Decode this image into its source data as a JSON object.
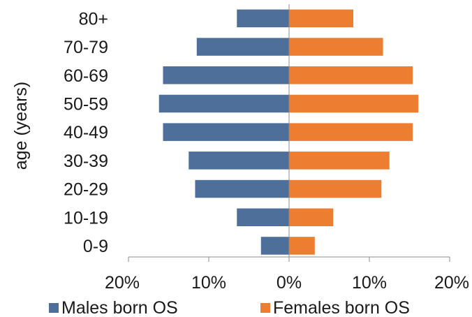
{
  "chart_data": {
    "type": "bar",
    "orientation": "horizontal",
    "title": "",
    "ylabel": "age (years)",
    "xlabel": "",
    "categories": [
      "80+",
      "70-79",
      "60-69",
      "50-59",
      "40-49",
      "30-39",
      "20-29",
      "10-19",
      "0-9"
    ],
    "series": [
      {
        "name": "Males born OS",
        "color": "#4e6f9a",
        "direction": "left",
        "values": [
          6.5,
          11.5,
          15.7,
          16.2,
          15.7,
          12.5,
          11.7,
          6.5,
          3.5
        ]
      },
      {
        "name": "Females born OS",
        "color": "#ed7d31",
        "direction": "right",
        "values": [
          8.0,
          11.7,
          15.4,
          16.1,
          15.4,
          12.5,
          11.5,
          5.5,
          3.2
        ]
      }
    ],
    "xlim": [
      -20,
      20
    ],
    "xticks": [
      -20,
      -10,
      0,
      10,
      20
    ],
    "xtick_labels": [
      "20%",
      "10%",
      "0%",
      "10%",
      "20%"
    ],
    "grid": false,
    "legend_position": "bottom"
  }
}
